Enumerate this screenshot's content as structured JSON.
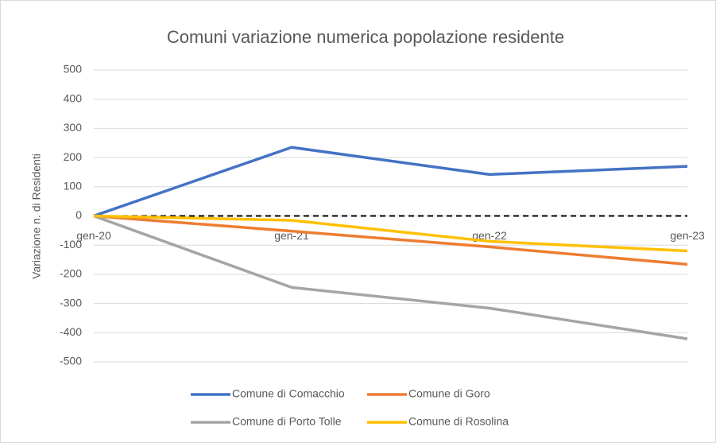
{
  "chart_data": {
    "type": "line",
    "title": "Comuni variazione numerica popolazione residente",
    "y_label": "Variazione n. di Residenti",
    "categories": [
      "gen-20",
      "gen-21",
      "gen-22",
      "gen-23"
    ],
    "series": [
      {
        "name": "Comune di Comacchio",
        "color": "#4472c4",
        "values": [
          0,
          235,
          142,
          170
        ]
      },
      {
        "name": "Comune di Goro",
        "color": "#ed7d31",
        "values": [
          0,
          -52,
          -106,
          -166
        ]
      },
      {
        "name": "Comune di Porto Tolle",
        "color": "#a5a5a5",
        "values": [
          0,
          -245,
          -316,
          -421
        ]
      },
      {
        "name": "Comune di Rosolina",
        "color": "#ffc000",
        "values": [
          0,
          -15,
          -87,
          -120
        ]
      }
    ],
    "ylim": [
      -500,
      500
    ],
    "yticks": [
      -500,
      -400,
      -300,
      -200,
      -100,
      0,
      100,
      200,
      300,
      400,
      500
    ],
    "grid": true
  }
}
